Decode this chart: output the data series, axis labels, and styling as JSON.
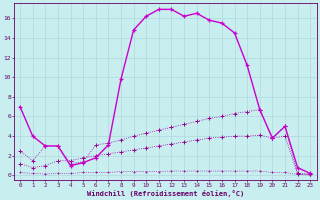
{
  "xlabel": "Windchill (Refroidissement éolien,°C)",
  "background_color": "#c8eef0",
  "grid_color": "#b0d8dc",
  "line_color1": "#cc00cc",
  "line_color2": "#990099",
  "xlim_min": -0.5,
  "xlim_max": 23.5,
  "ylim_min": -0.5,
  "ylim_max": 17.5,
  "xticks": [
    0,
    1,
    2,
    3,
    4,
    5,
    6,
    7,
    8,
    9,
    10,
    11,
    12,
    13,
    14,
    15,
    16,
    17,
    18,
    19,
    20,
    21,
    22,
    23
  ],
  "yticks": [
    0,
    2,
    4,
    6,
    8,
    10,
    12,
    14,
    16
  ],
  "s1_x": [
    0,
    1,
    2,
    3,
    4,
    5,
    6,
    7,
    8,
    9,
    10,
    11,
    12,
    13,
    14,
    15,
    16,
    17,
    18,
    19,
    20,
    21,
    22,
    23
  ],
  "s1_y": [
    7.0,
    4.0,
    3.0,
    3.0,
    1.0,
    1.3,
    1.8,
    3.1,
    9.8,
    14.8,
    16.2,
    16.9,
    16.9,
    16.2,
    16.5,
    15.8,
    15.5,
    14.5,
    11.2,
    6.7,
    3.8,
    5.0,
    0.8,
    0.2
  ],
  "s2_x": [
    0,
    1,
    2,
    3,
    4,
    5,
    6,
    7,
    8,
    9,
    10,
    11,
    12,
    13,
    14,
    15,
    16,
    17,
    18,
    19,
    20,
    21,
    22,
    23
  ],
  "s2_y": [
    2.5,
    1.5,
    3.0,
    3.0,
    1.2,
    1.4,
    3.1,
    3.3,
    3.6,
    4.0,
    4.3,
    4.6,
    4.9,
    5.2,
    5.5,
    5.8,
    6.0,
    6.3,
    6.5,
    6.7,
    3.8,
    5.0,
    0.2,
    0.15
  ],
  "s3_x": [
    0,
    1,
    2,
    3,
    4,
    5,
    6,
    7,
    8,
    9,
    10,
    11,
    12,
    13,
    14,
    15,
    16,
    17,
    18,
    19,
    20,
    21,
    22,
    23
  ],
  "s3_y": [
    1.2,
    0.8,
    1.0,
    1.5,
    1.5,
    1.8,
    2.0,
    2.2,
    2.4,
    2.6,
    2.8,
    3.0,
    3.2,
    3.4,
    3.6,
    3.8,
    3.9,
    4.0,
    4.0,
    4.1,
    3.8,
    4.0,
    0.15,
    0.1
  ],
  "s4_x": [
    0,
    1,
    2,
    3,
    4,
    5,
    6,
    7,
    8,
    9,
    10,
    11,
    12,
    13,
    14,
    15,
    16,
    17,
    18,
    19,
    20,
    21,
    22,
    23
  ],
  "s4_y": [
    0.3,
    0.2,
    0.15,
    0.2,
    0.2,
    0.3,
    0.3,
    0.3,
    0.4,
    0.4,
    0.4,
    0.4,
    0.45,
    0.45,
    0.45,
    0.45,
    0.45,
    0.45,
    0.45,
    0.45,
    0.3,
    0.3,
    0.1,
    0.05
  ]
}
